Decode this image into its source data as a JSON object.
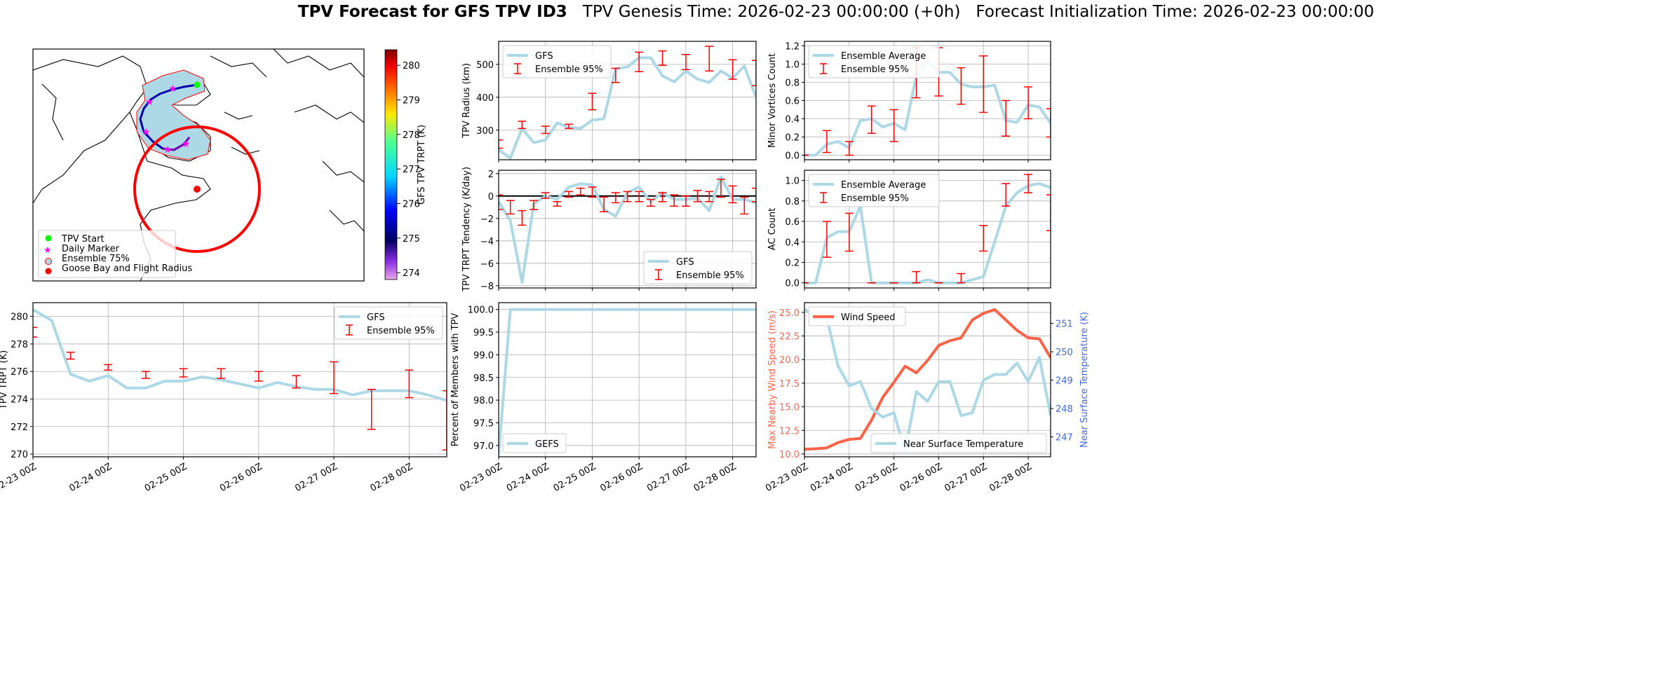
{
  "header": {
    "title_bold": "TPV Forecast for GFS TPV ID3",
    "genesis": "TPV Genesis Time: 2026-02-23 00:00:00 (+0h)",
    "init": "Forecast Initialization Time: 2026-02-23 00:00:00"
  },
  "map": {
    "legend": [
      "TPV Start",
      "Daily Marker",
      "Ensemble 75%",
      "Goose Bay and Flight Radius"
    ],
    "colorbar": {
      "label": "GFS TPV TRPT (K)",
      "ticks": [
        "274",
        "275",
        "276",
        "277",
        "278",
        "279",
        "280"
      ],
      "range": [
        273.8,
        280.45
      ]
    },
    "colors": {
      "start": "#00ff00",
      "marker": "#ff00ff",
      "ensemble_fill": "#add8e6",
      "ensemble_edge": "#ff0000",
      "goose_bay": "#ff0000"
    }
  },
  "xaxis": {
    "tick_labels": [
      "02-23 00Z",
      "02-24 00Z",
      "02-25 00Z",
      "02-26 00Z",
      "02-27 00Z",
      "02-28 00Z"
    ],
    "step_hours": 6
  },
  "chart_data": [
    {
      "id": "trpt",
      "type": "line",
      "ylabel": "TPV TRPT (K)",
      "ylim": [
        269.8,
        281
      ],
      "yticks": [
        "270",
        "272",
        "274",
        "276",
        "278",
        "280"
      ],
      "legend": "top-right",
      "series": [
        {
          "name": "GFS",
          "color": "#add8e6",
          "values": [
            280.5,
            279.7,
            275.8,
            275.3,
            275.7,
            274.8,
            274.8,
            275.3,
            275.3,
            275.6,
            275.4,
            275.1,
            274.8,
            275.2,
            274.9,
            274.7,
            274.7,
            274.3,
            274.6,
            274.6,
            274.6,
            274.3,
            273.9
          ]
        }
      ],
      "errorbars": {
        "name": "Ensemble 95%",
        "color": "#ff0000",
        "idx": [
          0,
          2,
          4,
          6,
          8,
          10,
          12,
          14,
          16,
          18,
          20,
          22
        ],
        "low": [
          278.5,
          276.9,
          276.1,
          275.5,
          275.6,
          275.5,
          275.3,
          274.8,
          274.4,
          271.8,
          274.1,
          270.3
        ],
        "high": [
          279.2,
          277.4,
          276.5,
          276.0,
          276.2,
          276.2,
          276.0,
          275.7,
          276.7,
          274.7,
          276.1,
          274.6
        ]
      }
    },
    {
      "id": "radius",
      "type": "line",
      "ylabel": "TPV Radius (km)",
      "ylim": [
        210,
        570
      ],
      "yticks": [
        "300",
        "400",
        "500"
      ],
      "legend": "top-left",
      "series": [
        {
          "name": "GFS",
          "color": "#add8e6",
          "values": [
            240,
            215,
            305,
            262,
            270,
            322,
            308,
            305,
            330,
            335,
            487,
            492,
            520,
            520,
            465,
            447,
            480,
            455,
            445,
            480,
            458,
            495,
            400
          ]
        }
      ],
      "errorbars": {
        "name": "Ensemble 95%",
        "color": "#ff0000",
        "idx": [
          0,
          2,
          4,
          6,
          8,
          10,
          12,
          14,
          16,
          18,
          20,
          22
        ],
        "low": [
          245,
          305,
          290,
          305,
          362,
          445,
          478,
          497,
          484,
          480,
          455,
          435
        ],
        "high": [
          270,
          327,
          312,
          318,
          412,
          488,
          537,
          541,
          530,
          555,
          514,
          512
        ]
      }
    },
    {
      "id": "tendency",
      "type": "line",
      "ylabel": "TPV TRPT Tendency (K/day)",
      "ylim": [
        -8.2,
        2.3
      ],
      "yticks": [
        "−8",
        "−6",
        "−4",
        "−2",
        "0",
        "2"
      ],
      "hline": 0,
      "legend": "bottom-right",
      "series": [
        {
          "name": "GFS",
          "color": "#add8e6",
          "values": [
            -0.5,
            -2.2,
            -7.7,
            -0.7,
            0,
            -0.3,
            0.8,
            1.1,
            1.0,
            -1.2,
            -1.8,
            0.3,
            0.8,
            -0.5,
            0.3,
            -0.3,
            -0.3,
            -0.2,
            -1.3,
            1.7,
            -0.3,
            -0.3,
            -0.6
          ]
        }
      ],
      "errorbars": {
        "name": "Ensemble 95%",
        "color": "#ff0000",
        "idx": [
          0,
          1,
          2,
          3,
          4,
          5,
          6,
          7,
          8,
          9,
          10,
          11,
          12,
          13,
          14,
          15,
          16,
          17,
          18,
          19,
          20,
          21,
          22
        ],
        "low": [
          -1.2,
          -1.6,
          -2.6,
          -1.2,
          -0.2,
          -0.9,
          -0.1,
          0.1,
          -0.1,
          -1.4,
          -0.6,
          -0.5,
          -0.5,
          -0.9,
          -0.5,
          -0.9,
          -0.9,
          -0.5,
          -0.5,
          -0.1,
          -0.6,
          -1.6,
          -0.5
        ],
        "high": [
          0.1,
          -0.4,
          -1.3,
          -0.4,
          0.3,
          -0.5,
          0.4,
          0.7,
          0.8,
          -0.1,
          0.3,
          0.4,
          0.4,
          -0.3,
          0.3,
          0.1,
          0.0,
          0.5,
          0.4,
          1.5,
          0.9,
          -0.1,
          0.7
        ]
      }
    },
    {
      "id": "percent",
      "type": "line",
      "ylabel": "Percent of Members with TPV",
      "ylim": [
        96.75,
        100.15
      ],
      "yticks": [
        "97.0",
        "97.5",
        "98.0",
        "98.5",
        "99.0",
        "99.5",
        "100.0"
      ],
      "legend": "bottom-left",
      "series": [
        {
          "name": "GEFS",
          "color": "#add8e6",
          "values": [
            96.8,
            100,
            100,
            100,
            100,
            100,
            100,
            100,
            100,
            100,
            100,
            100,
            100,
            100,
            100,
            100,
            100,
            100,
            100,
            100,
            100,
            100,
            100
          ]
        }
      ]
    },
    {
      "id": "minor",
      "type": "line",
      "ylabel": "Minor Vortices Count",
      "ylim": [
        -0.05,
        1.25
      ],
      "yticks": [
        "0.0",
        "0.2",
        "0.4",
        "0.6",
        "0.8",
        "1.0",
        "1.2"
      ],
      "legend": "top-left",
      "series": [
        {
          "name": "Ensemble Average",
          "color": "#add8e6",
          "values": [
            0,
            0,
            0.12,
            0.15,
            0.08,
            0.38,
            0.4,
            0.31,
            0.35,
            0.28,
            0.88,
            1.03,
            0.91,
            0.91,
            0.78,
            0.75,
            0.75,
            0.77,
            0.38,
            0.36,
            0.55,
            0.53,
            0.35
          ]
        }
      ],
      "errorbars": {
        "name": "Ensemble 95%",
        "color": "#ff0000",
        "idx": [
          0,
          2,
          4,
          6,
          8,
          10,
          12,
          14,
          16,
          18,
          20,
          22
        ],
        "low": [
          0,
          0.03,
          0,
          0.24,
          0.15,
          0.63,
          0.65,
          0.56,
          0.47,
          0.21,
          0.4,
          0.2
        ],
        "high": [
          0,
          0.27,
          0.15,
          0.54,
          0.5,
          1.18,
          1.18,
          0.96,
          1.09,
          0.6,
          0.75,
          0.51
        ]
      }
    },
    {
      "id": "ac",
      "type": "line",
      "ylabel": "AC Count",
      "ylim": [
        -0.05,
        1.1
      ],
      "yticks": [
        "0.0",
        "0.2",
        "0.4",
        "0.6",
        "0.8",
        "1.0"
      ],
      "legend": "top-left",
      "series": [
        {
          "name": "Ensemble Average",
          "color": "#add8e6",
          "values": [
            0,
            0,
            0.44,
            0.5,
            0.5,
            0.75,
            0,
            0,
            0,
            0,
            0,
            0.03,
            0,
            0,
            0,
            0.03,
            0.06,
            0.4,
            0.75,
            0.88,
            0.95,
            0.97,
            0.93
          ]
        }
      ],
      "errorbars": {
        "name": "Ensemble 95%",
        "color": "#ff0000",
        "idx": [
          0,
          2,
          4,
          6,
          8,
          10,
          12,
          14,
          16,
          18,
          20,
          22
        ],
        "low": [
          0,
          0.25,
          0.31,
          0,
          0,
          0,
          0,
          0,
          0.31,
          0.75,
          0.88,
          0.51
        ],
        "high": [
          0,
          0.6,
          0.68,
          0,
          0,
          0.11,
          0,
          0.09,
          0.56,
          0.97,
          1.06,
          0.86
        ]
      }
    },
    {
      "id": "wind",
      "type": "line",
      "ylabel": "Max Nearby Wind Speed (m/s)",
      "ylabel_color": "#ff6347",
      "ylim": [
        9.7,
        26.03
      ],
      "yticks": [
        "10.0",
        "12.5",
        "15.0",
        "17.5",
        "20.0",
        "22.5",
        "25.0"
      ],
      "legend": "top-left",
      "series": [
        {
          "name": "Wind Speed",
          "color": "#ff6347",
          "values": [
            10.5,
            10.55,
            10.65,
            11.2,
            11.55,
            11.65,
            13.6,
            16,
            17.6,
            19.3,
            18.6,
            19.9,
            21.5,
            22,
            22.3,
            24.2,
            24.9,
            25.3,
            24.2,
            23.1,
            22.3,
            22.2,
            20.2
          ]
        }
      ],
      "twin": {
        "ylabel": "Near Surface Temperature (K)",
        "color": "#4169e1",
        "ylim": [
          246.3,
          251.73
        ],
        "yticks": [
          "247",
          "248",
          "249",
          "250",
          "251"
        ],
        "legend": "bottom-right",
        "series": [
          {
            "name": "Near Surface Temperature",
            "color": "#add8e6",
            "values": [
              251.5,
              251.2,
              251.2,
              249.5,
              248.8,
              248.95,
              248.0,
              247.7,
              247.85,
              246.5,
              248.6,
              248.25,
              248.95,
              248.95,
              247.75,
              247.85,
              249.0,
              249.2,
              249.2,
              249.6,
              248.95,
              249.8,
              247.75
            ]
          }
        ]
      }
    }
  ]
}
